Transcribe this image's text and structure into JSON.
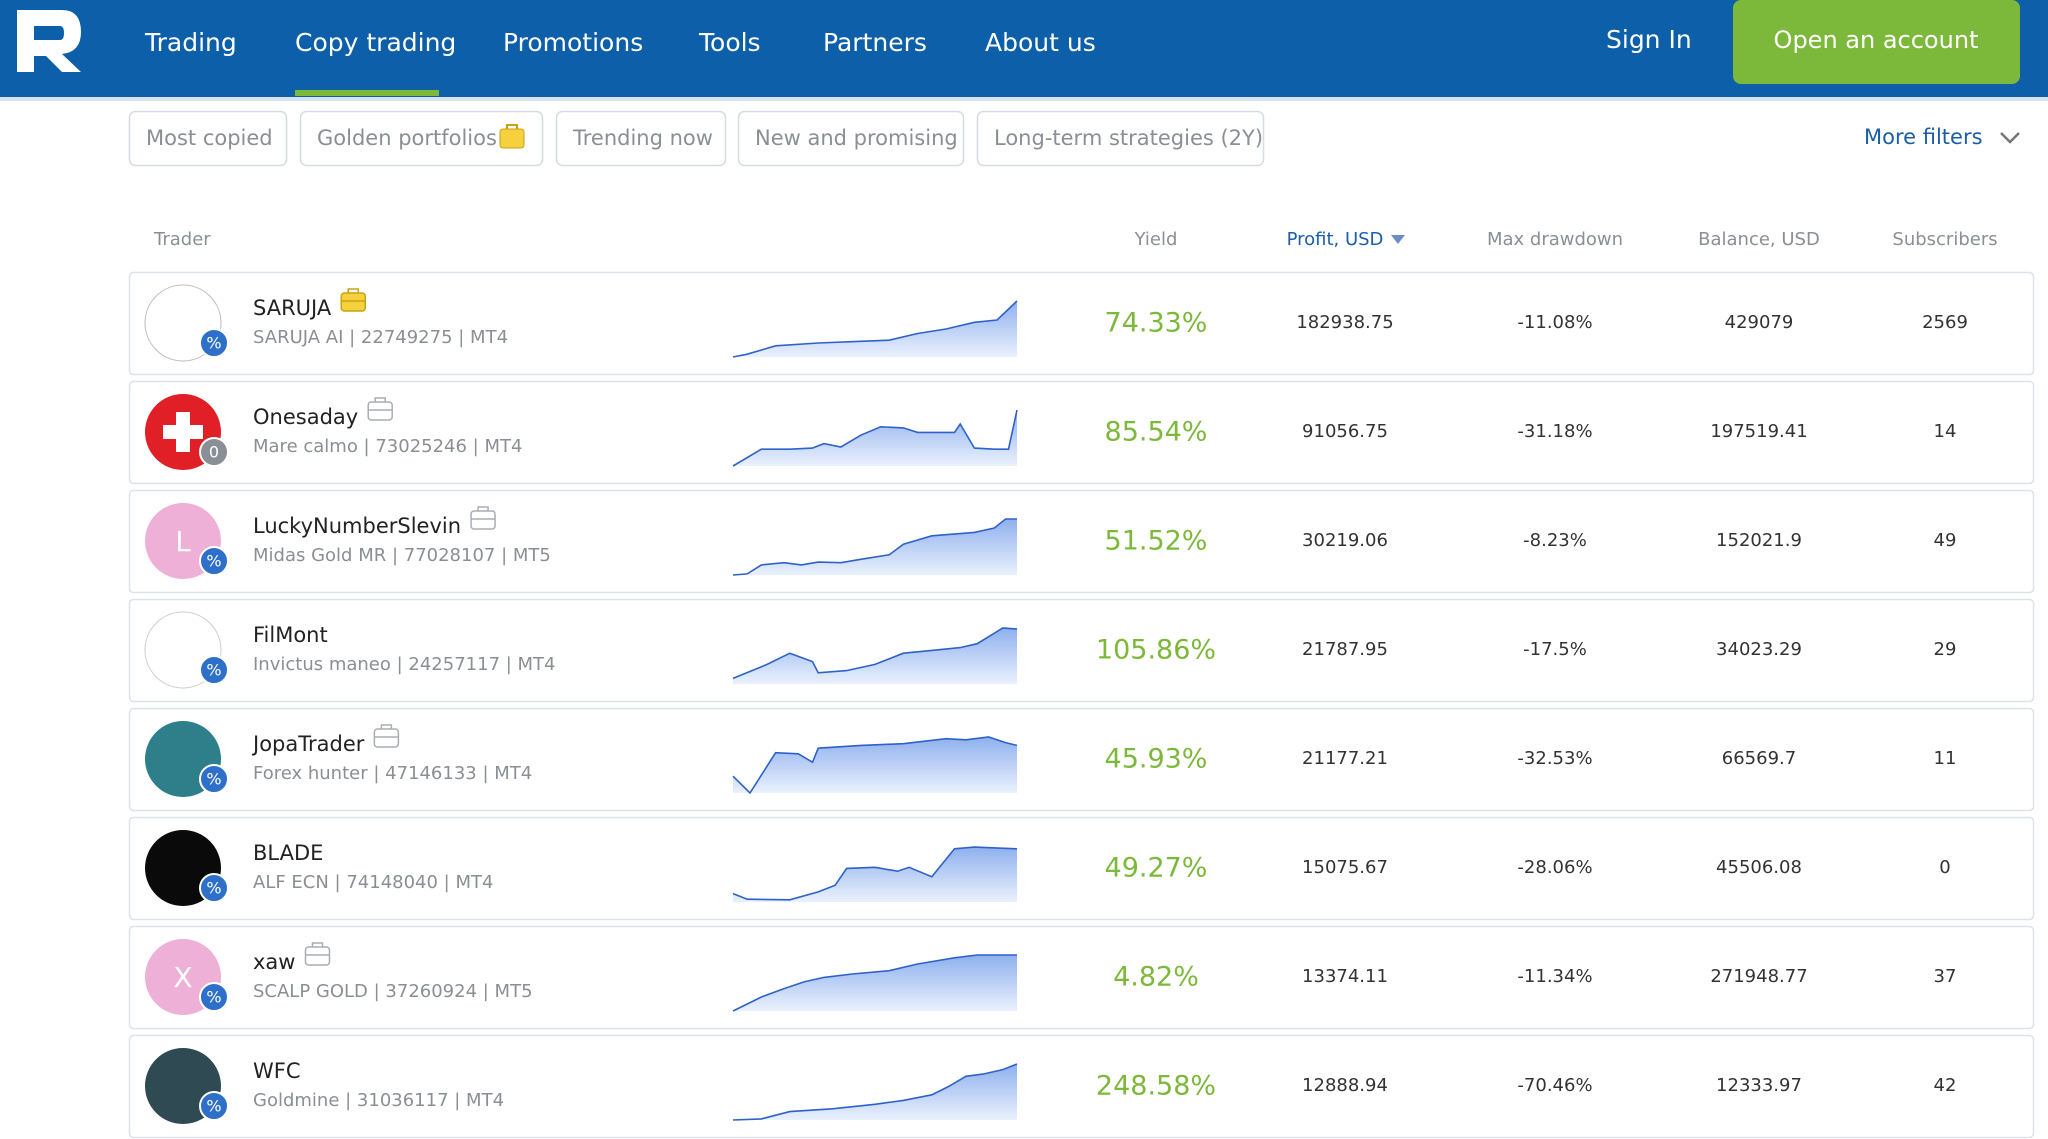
{
  "nav": {
    "items": [
      "Trading",
      "Copy trading",
      "Promotions",
      "Tools",
      "Partners",
      "About us"
    ],
    "sign_in": "Sign In",
    "open_account": "Open an account"
  },
  "filters": {
    "chips": [
      "Most copied",
      "Golden portfolios",
      "Trending now",
      "New and promising",
      "Long-term strategies (2Y)"
    ],
    "more": "More filters"
  },
  "table": {
    "headers": [
      "Trader",
      "Yield",
      "Profit, USD",
      "Max drawdown",
      "Balance, USD",
      "Subscribers"
    ],
    "rows": [
      {
        "name": "SARUJA",
        "strategy": "SARUJA AI | 22749275 | MT4",
        "yield": "74.33%",
        "profit": "182938.75",
        "drawdown": "-11.08%",
        "balance": "429079",
        "subscribers": "2569",
        "badge": "%"
      },
      {
        "name": "Onesaday",
        "strategy": "Mare calmo | 73025246 | MT4",
        "yield": "85.54%",
        "profit": "91056.75",
        "drawdown": "-31.18%",
        "balance": "197519.41",
        "subscribers": "14",
        "badge": "0"
      },
      {
        "name": "LuckyNumberSlevin",
        "strategy": "Midas Gold MR | 77028107 | MT5",
        "yield": "51.52%",
        "profit": "30219.06",
        "drawdown": "-8.23%",
        "balance": "152021.9",
        "subscribers": "49",
        "badge": "%",
        "avatar_text": "L"
      },
      {
        "name": "FilMont",
        "strategy": "Invictus maneo | 24257117 | MT4",
        "yield": "105.86%",
        "profit": "21787.95",
        "drawdown": "-17.5%",
        "balance": "34023.29",
        "subscribers": "29",
        "badge": "%"
      },
      {
        "name": "JopaTrader",
        "strategy": "Forex hunter | 47146133 | MT4",
        "yield": "45.93%",
        "profit": "21177.21",
        "drawdown": "-32.53%",
        "balance": "66569.7",
        "subscribers": "11",
        "badge": "%"
      },
      {
        "name": "BLADE",
        "strategy": "ALF ECN | 74148040 | MT4",
        "yield": "49.27%",
        "profit": "15075.67",
        "drawdown": "-28.06%",
        "balance": "45506.08",
        "subscribers": "0",
        "badge": "%"
      },
      {
        "name": "xaw",
        "strategy": "SCALP GOLD | 37260924 | MT5",
        "yield": "4.82%",
        "profit": "13374.11",
        "drawdown": "-11.34%",
        "balance": "271948.77",
        "subscribers": "37",
        "badge": "%",
        "avatar_text": "X"
      },
      {
        "name": "WFC",
        "strategy": "Goldmine | 31036117 | MT4",
        "yield": "248.58%",
        "profit": "12888.94",
        "drawdown": "-70.46%",
        "balance": "12333.97",
        "subscribers": "42",
        "badge": "%"
      }
    ]
  }
}
